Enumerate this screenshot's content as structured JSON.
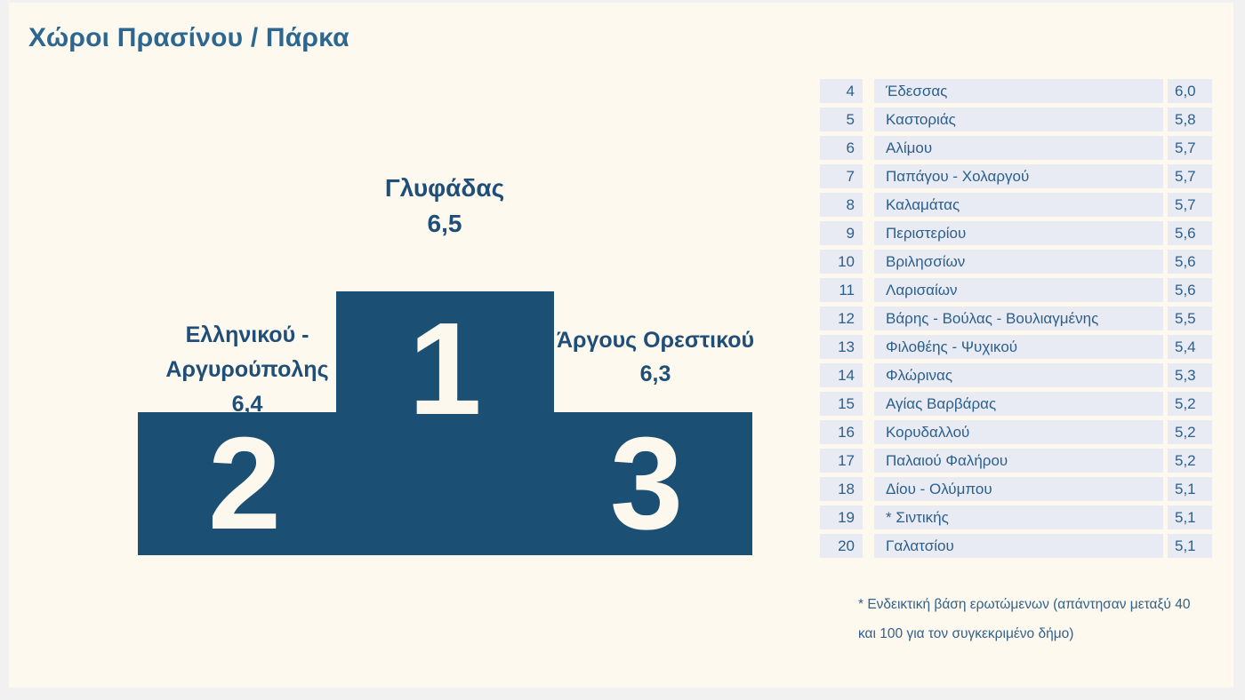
{
  "title": "Χώροι Πρασίνου / Πάρκα",
  "podium": {
    "first": {
      "rank": "1",
      "name": "Γλυφάδας",
      "score": "6,5"
    },
    "second": {
      "rank": "2",
      "name": "Ελληνικού - Αργυρούπολης",
      "score": "6,4"
    },
    "third": {
      "rank": "3",
      "name": "Άργους Ορεστικού",
      "score": "6,3"
    }
  },
  "table": {
    "rows": [
      {
        "rank": "4",
        "name": "Έδεσσας",
        "score": "6,0"
      },
      {
        "rank": "5",
        "name": "Καστοριάς",
        "score": "5,8"
      },
      {
        "rank": "6",
        "name": "Αλίμου",
        "score": "5,7"
      },
      {
        "rank": "7",
        "name": "Παπάγου - Χολαργού",
        "score": "5,7"
      },
      {
        "rank": "8",
        "name": "Καλαμάτας",
        "score": "5,7"
      },
      {
        "rank": "9",
        "name": "Περιστερίου",
        "score": "5,6"
      },
      {
        "rank": "10",
        "name": "Βριλησσίων",
        "score": "5,6"
      },
      {
        "rank": "11",
        "name": "Λαρισαίων",
        "score": "5,6"
      },
      {
        "rank": "12",
        "name": "Βάρης - Βούλας - Βουλιαγμένης",
        "score": "5,5"
      },
      {
        "rank": "13",
        "name": "Φιλοθέης - Ψυχικού",
        "score": "5,4"
      },
      {
        "rank": "14",
        "name": "Φλώρινας",
        "score": "5,3"
      },
      {
        "rank": "15",
        "name": "Αγίας Βαρβάρας",
        "score": "5,2"
      },
      {
        "rank": "16",
        "name": "Κορυδαλλού",
        "score": "5,2"
      },
      {
        "rank": "17",
        "name": "Παλαιού Φαλήρου",
        "score": "5,2"
      },
      {
        "rank": "18",
        "name": "Δίου - Ολύμπου",
        "score": "5,1"
      },
      {
        "rank": "19",
        "name": "* Σιντικής",
        "score": "5,1"
      },
      {
        "rank": "20",
        "name": "Γαλατσίου",
        "score": "5,1"
      }
    ]
  },
  "footnote": {
    "line1": "* Ενδεικτική βάση ερωτώμενων (απάντησαν μεταξύ 40",
    "line2": "και 100 για τον συγκεκριμένο δήμο)"
  },
  "colors": {
    "panel_cream": "#fdf9ee",
    "frame_gray": "#f0f1f0",
    "podium_navy": "#1c4f74",
    "podium_number_cream": "#fcf8ee",
    "title_blue": "#2c6791",
    "label_navy": "#1f4e79",
    "table_row_bg": "#e9ebf4",
    "table_text_blue": "#2c5f8a"
  },
  "chart_data": {
    "type": "table",
    "title": "Χώροι Πρασίνου / Πάρκα",
    "columns": [
      "rank",
      "municipality",
      "score"
    ],
    "rows": [
      [
        1,
        "Γλυφάδας",
        6.5
      ],
      [
        2,
        "Ελληνικού - Αργυρούπολης",
        6.4
      ],
      [
        3,
        "Άργους Ορεστικού",
        6.3
      ],
      [
        4,
        "Έδεσσας",
        6.0
      ],
      [
        5,
        "Καστοριάς",
        5.8
      ],
      [
        6,
        "Αλίμου",
        5.7
      ],
      [
        7,
        "Παπάγου - Χολαργού",
        5.7
      ],
      [
        8,
        "Καλαμάτας",
        5.7
      ],
      [
        9,
        "Περιστερίου",
        5.6
      ],
      [
        10,
        "Βριλησσίων",
        5.6
      ],
      [
        11,
        "Λαρισαίων",
        5.6
      ],
      [
        12,
        "Βάρης - Βούλας - Βουλιαγμένης",
        5.5
      ],
      [
        13,
        "Φιλοθέης - Ψυχικού",
        5.4
      ],
      [
        14,
        "Φλώρινας",
        5.3
      ],
      [
        15,
        "Αγίας Βαρβάρας",
        5.2
      ],
      [
        16,
        "Κορυδαλλού",
        5.2
      ],
      [
        17,
        "Παλαιού Φαλήρου",
        5.2
      ],
      [
        18,
        "Δίου - Ολύμπου",
        5.1
      ],
      [
        19,
        "* Σιντικής",
        5.1
      ],
      [
        20,
        "Γαλατσίου",
        5.1
      ]
    ],
    "layout": "ranks 1-3 shown as podium blocks with names and scores; ranks 4-20 shown as striped table at right",
    "annotations": "* Ενδεικτική βάση ερωτώμενων (απάντησαν μεταξύ 40 και 100 για τον συγκεκριμένο δήμο)"
  }
}
